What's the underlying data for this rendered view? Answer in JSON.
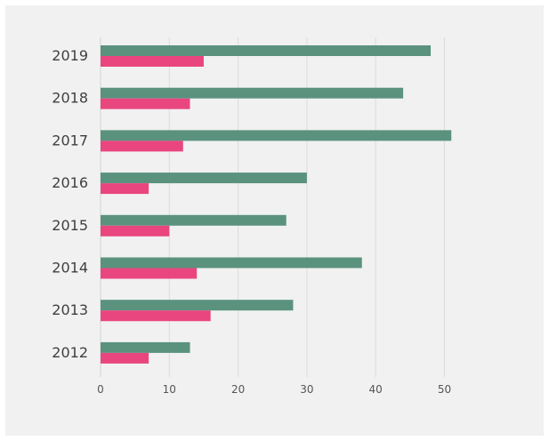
{
  "chart_data": {
    "type": "bar",
    "orientation": "horizontal",
    "categories": [
      "2019",
      "2018",
      "2017",
      "2016",
      "2015",
      "2014",
      "2013",
      "2012"
    ],
    "series": [
      {
        "values": [
          48,
          44,
          51,
          30,
          27,
          38,
          28,
          13
        ],
        "color": "#5a927e"
      },
      {
        "values": [
          15,
          13,
          12,
          7,
          10,
          14,
          16,
          7
        ],
        "color": "#e9467f"
      }
    ],
    "xticks": [
      "0",
      "10",
      "20",
      "30",
      "40",
      "50"
    ],
    "xlim": [
      0,
      60
    ],
    "title": "",
    "xlabel": "",
    "ylabel": "",
    "grid": "vertical",
    "legend": "none"
  }
}
